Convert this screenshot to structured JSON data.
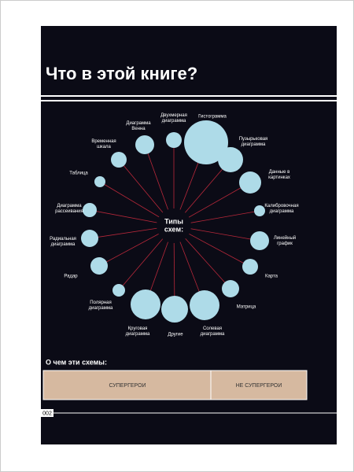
{
  "header": {
    "title": "Что в этой книге?"
  },
  "diagram": {
    "center": [
      "Типы",
      "схем:"
    ],
    "nodes": [
      {
        "label": [
          "Гистограмма"
        ]
      },
      {
        "label": [
          "Двухмерная",
          "диаграмма"
        ]
      },
      {
        "label": [
          "Диаграмма",
          "Венна"
        ]
      },
      {
        "label": [
          "Временная",
          "шкала"
        ]
      },
      {
        "label": [
          "Таблица"
        ]
      },
      {
        "label": [
          "Диаграмма",
          "рассеивания"
        ]
      },
      {
        "label": [
          "Радиальная",
          "диаграмма"
        ]
      },
      {
        "label": [
          "Радар"
        ]
      },
      {
        "label": [
          "Полярная",
          "диаграмма"
        ]
      },
      {
        "label": [
          "Круговая",
          "диаграмма"
        ]
      },
      {
        "label": [
          "Другие"
        ]
      },
      {
        "label": [
          "Солевая",
          "диаграмма"
        ]
      },
      {
        "label": [
          "Матрица"
        ]
      },
      {
        "label": [
          "Карта"
        ]
      },
      {
        "label": [
          "Линейный",
          "график"
        ]
      },
      {
        "label": [
          "Калибровочная",
          "диаграмма"
        ]
      },
      {
        "label": [
          "Данные в",
          "картинках"
        ]
      },
      {
        "label": [
          "Пузырьковая",
          "диаграмма"
        ]
      }
    ]
  },
  "footer": {
    "question": "О чем эти схемы:",
    "options": [
      "СУПЕРГЕРОИ",
      "НЕ СУПЕРГЕРОИ"
    ],
    "page": "002"
  }
}
